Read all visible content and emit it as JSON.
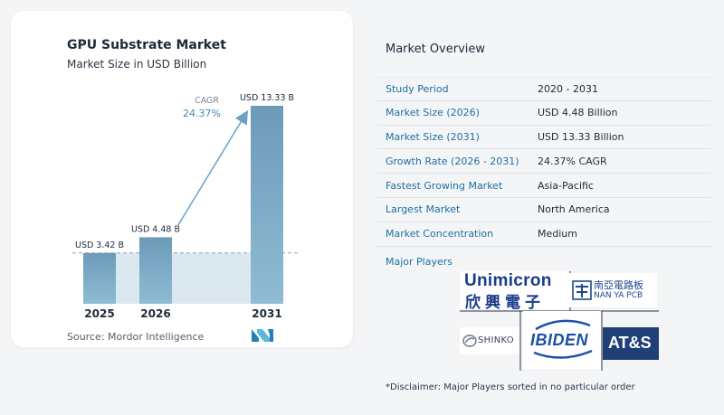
{
  "left_panel": {
    "title": "GPU Substrate Market",
    "subtitle": "Market Size in USD Billion",
    "source": "Source:  Mordor Intelligence"
  },
  "chart_data": {
    "type": "bar",
    "title": "GPU Substrate Market",
    "subtitle": "Market Size in USD Billion",
    "categories": [
      "2025",
      "2026",
      "2031"
    ],
    "values": [
      3.42,
      4.48,
      13.33
    ],
    "data_labels": [
      "USD 3.42 B",
      "USD 4.48 B",
      "USD 13.33 B"
    ],
    "ylim": [
      0,
      13.33
    ],
    "grid": false,
    "annotation": {
      "label": "CAGR",
      "value": "24.37%"
    },
    "colors": {
      "bar": "#6d9ab8",
      "bar_light": "#8fbcd4",
      "shade": "#dce8f0",
      "arrow": "#6aa2c4",
      "accent": "#3f89b8"
    }
  },
  "overview": {
    "title": "Market Overview",
    "rows": [
      {
        "label": "Study Period",
        "value": "2020 - 2031"
      },
      {
        "label": "Market Size (2026)",
        "value": "USD 4.48 Billion"
      },
      {
        "label": "Market Size (2031)",
        "value": "USD 13.33 Billion"
      },
      {
        "label": "Growth Rate (2026 - 2031)",
        "value": "24.37% CAGR"
      },
      {
        "label": "Fastest Growing Market",
        "value": "Asia-Pacific"
      },
      {
        "label": "Largest Market",
        "value": "North America"
      },
      {
        "label": "Market Concentration",
        "value": "Medium"
      }
    ],
    "players_title": "Major Players",
    "players": {
      "unimicron_en": "Unimicron",
      "unimicron_zh": "欣興電子",
      "nanya_zh": "南亞電路板",
      "nanya_en": "NAN YA PCB",
      "shinko": "SHINKO",
      "ibiden": "IBIDEN",
      "ats": "AT&S"
    },
    "disclaimer": "*Disclaimer: Major Players sorted in no particular order"
  }
}
